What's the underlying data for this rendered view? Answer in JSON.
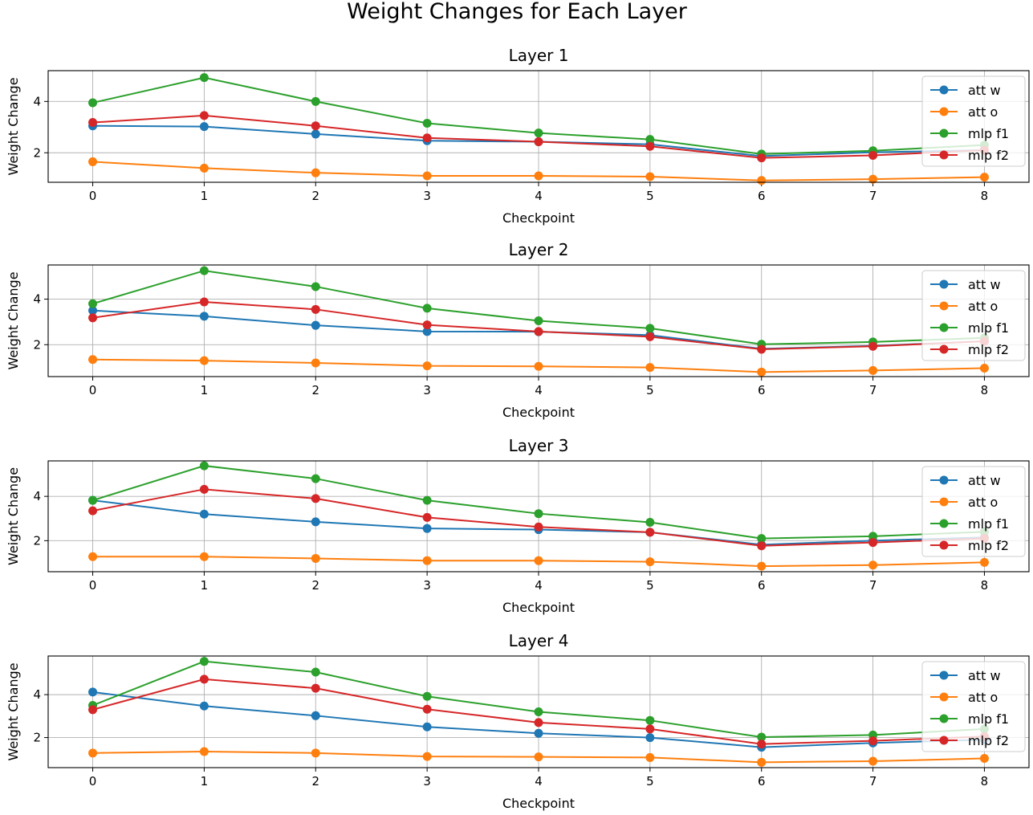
{
  "figure": {
    "title": "Weight Changes for Each Layer"
  },
  "chart_data": [
    {
      "type": "line",
      "title": "Layer 1",
      "xlabel": "Checkpoint",
      "ylabel": "Weight Change",
      "x": [
        0,
        1,
        2,
        3,
        4,
        5,
        6,
        7,
        8
      ],
      "xlim": [
        -0.4,
        8.4
      ],
      "ylim": [
        0.85,
        5.2
      ],
      "yticks": [
        2,
        4
      ],
      "grid": true,
      "legend_position": "right",
      "series": [
        {
          "name": "att w",
          "color": "#1f77b4",
          "values": [
            3.05,
            3.02,
            2.73,
            2.47,
            2.43,
            2.33,
            1.87,
            2.02,
            2.1
          ]
        },
        {
          "name": "att o",
          "color": "#ff7f0e",
          "values": [
            1.65,
            1.4,
            1.22,
            1.1,
            1.1,
            1.07,
            0.92,
            0.97,
            1.05
          ]
        },
        {
          "name": "mlp f1",
          "color": "#2ca02c",
          "values": [
            3.95,
            4.93,
            4.0,
            3.15,
            2.77,
            2.52,
            1.95,
            2.08,
            2.3
          ]
        },
        {
          "name": "mlp f2",
          "color": "#d62728",
          "values": [
            3.18,
            3.45,
            3.05,
            2.58,
            2.43,
            2.25,
            1.8,
            1.9,
            2.1
          ]
        }
      ]
    },
    {
      "type": "line",
      "title": "Layer 2",
      "xlabel": "Checkpoint",
      "ylabel": "Weight Change",
      "x": [
        0,
        1,
        2,
        3,
        4,
        5,
        6,
        7,
        8
      ],
      "xlim": [
        -0.4,
        8.4
      ],
      "ylim": [
        0.6,
        5.5
      ],
      "yticks": [
        2,
        4
      ],
      "grid": true,
      "legend_position": "right",
      "series": [
        {
          "name": "att w",
          "color": "#1f77b4",
          "values": [
            3.5,
            3.25,
            2.85,
            2.58,
            2.57,
            2.42,
            1.82,
            1.95,
            2.15
          ]
        },
        {
          "name": "att o",
          "color": "#ff7f0e",
          "values": [
            1.35,
            1.3,
            1.2,
            1.07,
            1.05,
            1.0,
            0.8,
            0.87,
            0.97
          ]
        },
        {
          "name": "mlp f1",
          "color": "#2ca02c",
          "values": [
            3.8,
            5.25,
            4.55,
            3.6,
            3.05,
            2.72,
            2.02,
            2.12,
            2.3
          ]
        },
        {
          "name": "mlp f2",
          "color": "#d62728",
          "values": [
            3.18,
            3.88,
            3.55,
            2.87,
            2.58,
            2.35,
            1.8,
            1.93,
            2.15
          ]
        }
      ]
    },
    {
      "type": "line",
      "title": "Layer 3",
      "xlabel": "Checkpoint",
      "ylabel": "Weight Change",
      "x": [
        0,
        1,
        2,
        3,
        4,
        5,
        6,
        7,
        8
      ],
      "xlim": [
        -0.4,
        8.4
      ],
      "ylim": [
        0.6,
        5.6
      ],
      "yticks": [
        2,
        4
      ],
      "grid": true,
      "legend_position": "right",
      "series": [
        {
          "name": "att w",
          "color": "#1f77b4",
          "values": [
            3.82,
            3.2,
            2.85,
            2.55,
            2.5,
            2.38,
            1.82,
            2.0,
            2.15
          ]
        },
        {
          "name": "att o",
          "color": "#ff7f0e",
          "values": [
            1.28,
            1.28,
            1.2,
            1.1,
            1.1,
            1.05,
            0.85,
            0.9,
            1.02
          ]
        },
        {
          "name": "mlp f1",
          "color": "#2ca02c",
          "values": [
            3.82,
            5.38,
            4.8,
            3.82,
            3.22,
            2.83,
            2.1,
            2.2,
            2.4
          ]
        },
        {
          "name": "mlp f2",
          "color": "#d62728",
          "values": [
            3.35,
            4.32,
            3.9,
            3.05,
            2.62,
            2.38,
            1.77,
            1.92,
            2.1
          ]
        }
      ]
    },
    {
      "type": "line",
      "title": "Layer 4",
      "xlabel": "Checkpoint",
      "ylabel": "Weight Change",
      "x": [
        0,
        1,
        2,
        3,
        4,
        5,
        6,
        7,
        8
      ],
      "xlim": [
        -0.4,
        8.4
      ],
      "ylim": [
        0.6,
        5.8
      ],
      "yticks": [
        2,
        4
      ],
      "grid": true,
      "legend_position": "right",
      "series": [
        {
          "name": "att w",
          "color": "#1f77b4",
          "values": [
            4.12,
            3.47,
            3.02,
            2.5,
            2.2,
            2.0,
            1.55,
            1.75,
            1.9
          ]
        },
        {
          "name": "att o",
          "color": "#ff7f0e",
          "values": [
            1.28,
            1.35,
            1.28,
            1.12,
            1.1,
            1.07,
            0.85,
            0.9,
            1.03
          ]
        },
        {
          "name": "mlp f1",
          "color": "#2ca02c",
          "values": [
            3.5,
            5.55,
            5.05,
            3.92,
            3.2,
            2.8,
            2.02,
            2.12,
            2.4
          ]
        },
        {
          "name": "mlp f2",
          "color": "#d62728",
          "values": [
            3.3,
            4.72,
            4.3,
            3.32,
            2.7,
            2.4,
            1.7,
            1.85,
            2.05
          ]
        }
      ]
    }
  ]
}
